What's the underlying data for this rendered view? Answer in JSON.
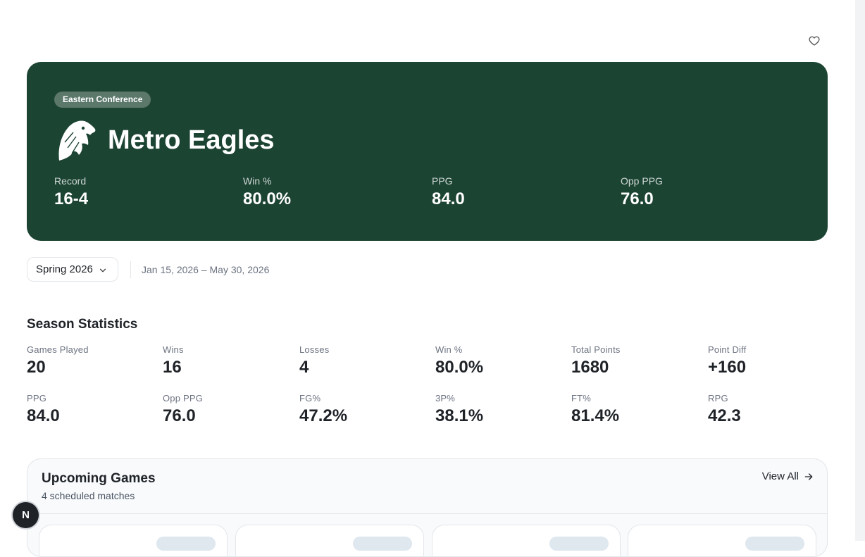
{
  "team": {
    "conference_badge": "Eastern Conference",
    "name": "Metro Eagles",
    "logo_icon": "eagle-head-icon",
    "hero_color": "#1c4433",
    "stats": [
      {
        "label": "Record",
        "value": "16-4"
      },
      {
        "label": "Win %",
        "value": "80.0%"
      },
      {
        "label": "PPG",
        "value": "84.0"
      },
      {
        "label": "Opp PPG",
        "value": "76.0"
      }
    ]
  },
  "season_filter": {
    "selected": "Spring 2026",
    "date_range": "Jan 15, 2026 – May 30, 2026"
  },
  "season_statistics": {
    "title": "Season Statistics",
    "stats": [
      {
        "label": "Games Played",
        "value": "20"
      },
      {
        "label": "Wins",
        "value": "16"
      },
      {
        "label": "Losses",
        "value": "4"
      },
      {
        "label": "Win %",
        "value": "80.0%"
      },
      {
        "label": "Total Points",
        "value": "1680"
      },
      {
        "label": "Point Diff",
        "value": "+160"
      },
      {
        "label": "PPG",
        "value": "84.0"
      },
      {
        "label": "Opp PPG",
        "value": "76.0"
      },
      {
        "label": "FG%",
        "value": "47.2%"
      },
      {
        "label": "3P%",
        "value": "38.1%"
      },
      {
        "label": "FT%",
        "value": "81.4%"
      },
      {
        "label": "RPG",
        "value": "42.3"
      }
    ]
  },
  "upcoming_games": {
    "title": "Upcoming Games",
    "subtitle": "4 scheduled matches",
    "view_all_label": "View All"
  },
  "fab": {
    "label": "N"
  }
}
